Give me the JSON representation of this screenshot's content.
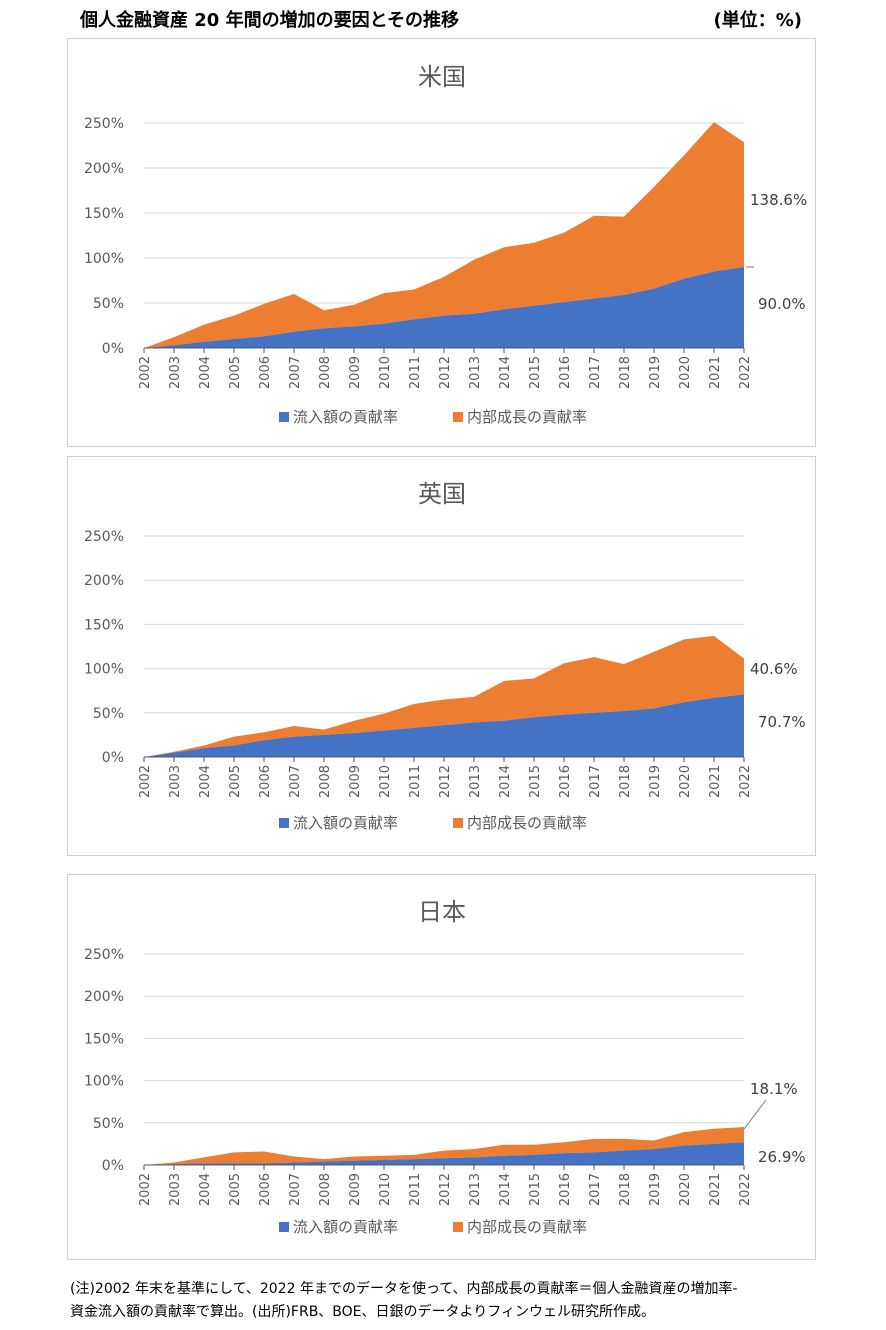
{
  "header": {
    "title": "個人金融資産 20 年間の増加の要因とその推移",
    "unit": "(単位：%)"
  },
  "legend": {
    "inflow": "流入額の貢献率",
    "internal": "内部成長の貢献率"
  },
  "colors": {
    "inflow": "#4472C4",
    "internal": "#ED7D31",
    "grid": "#D9D9D9",
    "axis": "#595959"
  },
  "chart_data": [
    {
      "type": "area",
      "stacked": true,
      "title": "米国",
      "x": [
        "2002",
        "2003",
        "2004",
        "2005",
        "2006",
        "2007",
        "2008",
        "2009",
        "2010",
        "2011",
        "2012",
        "2013",
        "2014",
        "2015",
        "2016",
        "2017",
        "2018",
        "2019",
        "2020",
        "2021",
        "2022"
      ],
      "series": [
        {
          "name": "流入額の貢献率",
          "values": [
            0,
            3,
            7,
            10,
            13,
            18,
            22,
            24,
            27,
            32,
            36,
            38,
            43,
            47,
            51,
            55,
            59,
            66,
            77,
            85,
            90
          ]
        },
        {
          "name": "内部成長の貢献率",
          "values": [
            0,
            9,
            19,
            26,
            36,
            42,
            20,
            24,
            34,
            33,
            43,
            60,
            69,
            70,
            77,
            92,
            87,
            113,
            137,
            166,
            138.6
          ]
        }
      ],
      "ylim": [
        0,
        250
      ],
      "yticks": [
        "0%",
        "50%",
        "100%",
        "150%",
        "200%",
        "250%"
      ],
      "yticks_values": [
        0,
        50,
        100,
        150,
        200,
        250
      ],
      "annotations": {
        "internal_end": "138.6%",
        "inflow_end": "90.0%"
      }
    },
    {
      "type": "area",
      "stacked": true,
      "title": "英国",
      "x": [
        "2002",
        "2003",
        "2004",
        "2005",
        "2006",
        "2007",
        "2008",
        "2009",
        "2010",
        "2011",
        "2012",
        "2013",
        "2014",
        "2015",
        "2016",
        "2017",
        "2018",
        "2019",
        "2020",
        "2021",
        "2022"
      ],
      "series": [
        {
          "name": "流入額の貢献率",
          "values": [
            0,
            5,
            10,
            13,
            19,
            23,
            25,
            27,
            30,
            33,
            36,
            39,
            41,
            45,
            48,
            50,
            52,
            55,
            62,
            67,
            70.7
          ]
        },
        {
          "name": "内部成長の貢献率",
          "values": [
            0,
            1,
            3,
            10,
            9,
            12,
            6,
            14,
            19,
            27,
            29,
            29,
            45,
            44,
            58,
            63,
            53,
            64,
            71,
            70,
            40.6
          ]
        }
      ],
      "ylim": [
        0,
        250
      ],
      "yticks": [
        "0%",
        "50%",
        "100%",
        "150%",
        "200%",
        "250%"
      ],
      "yticks_values": [
        0,
        50,
        100,
        150,
        200,
        250
      ],
      "annotations": {
        "internal_end": "40.6%",
        "inflow_end": "70.7%"
      }
    },
    {
      "type": "area",
      "stacked": true,
      "title": "日本",
      "x": [
        "2002",
        "2003",
        "2004",
        "2005",
        "2006",
        "2007",
        "2008",
        "2009",
        "2010",
        "2011",
        "2012",
        "2013",
        "2014",
        "2015",
        "2016",
        "2017",
        "2018",
        "2019",
        "2020",
        "2021",
        "2022"
      ],
      "series": [
        {
          "name": "流入額の貢献率",
          "values": [
            0,
            1,
            2,
            2,
            2,
            3,
            4,
            5,
            6,
            7,
            8,
            9,
            11,
            12,
            14,
            15,
            17,
            19,
            23,
            25,
            26.9
          ]
        },
        {
          "name": "内部成長の貢献率",
          "values": [
            0,
            2,
            7,
            13,
            14,
            7,
            3,
            5,
            5,
            5,
            9,
            10,
            13,
            12,
            13,
            16,
            14,
            10,
            16,
            18,
            18.1
          ]
        }
      ],
      "ylim": [
        0,
        250
      ],
      "yticks": [
        "0%",
        "50%",
        "100%",
        "150%",
        "200%",
        "250%"
      ],
      "yticks_values": [
        0,
        50,
        100,
        150,
        200,
        250
      ],
      "annotations": {
        "internal_end": "18.1%",
        "inflow_end": "26.9%"
      }
    }
  ],
  "note": {
    "line1": "(注)2002 年末を基準にして、2022 年までのデータを使って、内部成長の貢献率＝個人金融資産の増加率-",
    "line2": "資金流入額の貢献率で算出。(出所)FRB、BOE、日銀のデータよりフィンウェル研究所作成。"
  }
}
